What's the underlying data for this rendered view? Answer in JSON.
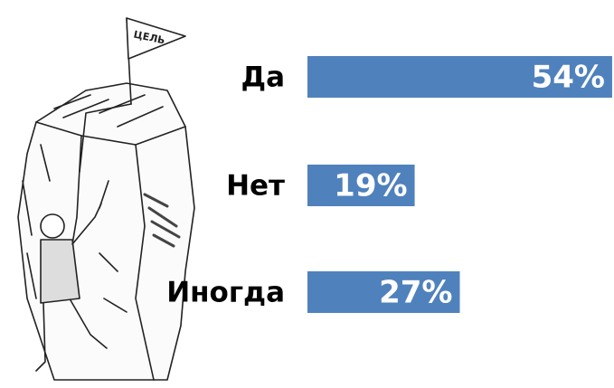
{
  "chart_data": {
    "type": "bar",
    "orientation": "horizontal",
    "categories": [
      "Да",
      "Нет",
      "Иногда"
    ],
    "values": [
      54,
      19,
      27
    ],
    "value_labels": [
      "54%",
      "19%",
      "27%"
    ],
    "color": "#4f81bd",
    "annotation": "ЦЕЛЬ"
  }
}
